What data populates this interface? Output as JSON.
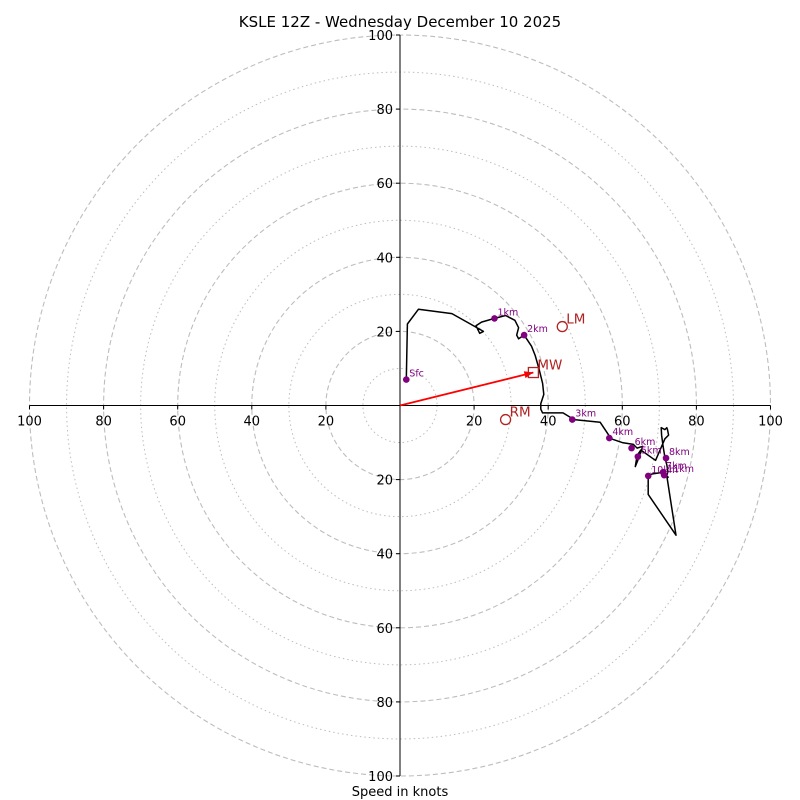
{
  "chart_data": {
    "type": "hodograph",
    "title": "KSLE 12Z - Wednesday December 10 2025",
    "xlabel": "Speed in knots",
    "units": "knots",
    "max_speed": 100,
    "rings_major": [
      20,
      40,
      60,
      80,
      100
    ],
    "rings_minor": [
      10,
      30,
      50,
      70,
      90
    ],
    "tick_values": [
      20,
      40,
      60,
      80,
      100
    ],
    "tick_labels": [
      "20",
      "40",
      "60",
      "80",
      "100"
    ],
    "colors": {
      "trace": "#000000",
      "height_marker": "#800080",
      "storm_motion": "#b22222",
      "mean_wind_vector": "#ff0000",
      "rings": "#bdbdbd"
    },
    "trace": [
      [
        1.7,
        7
      ],
      [
        2,
        22
      ],
      [
        5,
        26
      ],
      [
        14,
        24.8
      ],
      [
        19,
        22
      ],
      [
        22.5,
        20
      ],
      [
        21.5,
        19.5
      ],
      [
        20.5,
        21.5
      ],
      [
        22,
        22.5
      ],
      [
        25.5,
        23.5
      ],
      [
        28.5,
        24.3
      ],
      [
        31,
        23
      ],
      [
        32,
        21
      ],
      [
        31.5,
        19
      ],
      [
        32,
        18
      ],
      [
        33.5,
        19
      ],
      [
        35.5,
        16
      ],
      [
        36.5,
        13.5
      ],
      [
        37.5,
        10
      ],
      [
        38.5,
        6
      ],
      [
        38.8,
        3
      ],
      [
        38.5,
        2
      ],
      [
        38,
        0.5
      ],
      [
        38,
        -1
      ],
      [
        38.5,
        -2
      ],
      [
        44,
        -2
      ],
      [
        47,
        -3.8
      ],
      [
        54,
        -4.5
      ],
      [
        57,
        -9
      ],
      [
        60,
        -10
      ],
      [
        63,
        -10.5
      ],
      [
        64,
        -11.5
      ],
      [
        65.5,
        -11
      ],
      [
        64.5,
        -14
      ],
      [
        63.5,
        -16.5
      ],
      [
        64,
        -13.5
      ],
      [
        65,
        -12
      ],
      [
        68.5,
        -14.5
      ],
      [
        69,
        -14.8
      ],
      [
        71.5,
        -9
      ],
      [
        72.5,
        -8
      ],
      [
        72.2,
        -6.5
      ],
      [
        72,
        -6
      ],
      [
        71.5,
        -6.5
      ],
      [
        70.5,
        -6
      ],
      [
        70.6,
        -8
      ],
      [
        71,
        -11
      ],
      [
        71.5,
        -14
      ],
      [
        72,
        -16
      ],
      [
        72.3,
        -17.8
      ],
      [
        72,
        -19
      ],
      [
        74.5,
        -35
      ],
      [
        67,
        -24
      ],
      [
        67,
        -19
      ],
      [
        68,
        -18.5
      ],
      [
        71,
        -18
      ],
      [
        72.5,
        -19.5
      ]
    ],
    "height_points": [
      {
        "label": "Sfc",
        "u": 1.7,
        "v": 7
      },
      {
        "label": "1km",
        "u": 25.5,
        "v": 23.5
      },
      {
        "label": "2km",
        "u": 33.5,
        "v": 19
      },
      {
        "label": "3km",
        "u": 46.5,
        "v": -3.8
      },
      {
        "label": "4km",
        "u": 56.5,
        "v": -8.8
      },
      {
        "label": "5km",
        "u": 64.2,
        "v": -13.8
      },
      {
        "label": "6km",
        "u": 62.5,
        "v": -11.5
      },
      {
        "label": "7km",
        "u": 71,
        "v": -18
      },
      {
        "label": "8km",
        "u": 71.8,
        "v": -14.2
      },
      {
        "label": "10km",
        "u": 67,
        "v": -19
      },
      {
        "label": "11km",
        "u": 71.3,
        "v": -18.8
      }
    ],
    "storm_motion": [
      {
        "label": "LM",
        "u": 43.8,
        "v": 21.3,
        "marker": "circle"
      },
      {
        "label": "MW",
        "u": 36,
        "v": 8.9,
        "marker": "square"
      },
      {
        "label": "RM",
        "u": 28.5,
        "v": -3.8,
        "marker": "circle"
      }
    ],
    "mean_wind_vector": {
      "from": [
        0,
        0
      ],
      "to": [
        36,
        8.9
      ]
    }
  }
}
